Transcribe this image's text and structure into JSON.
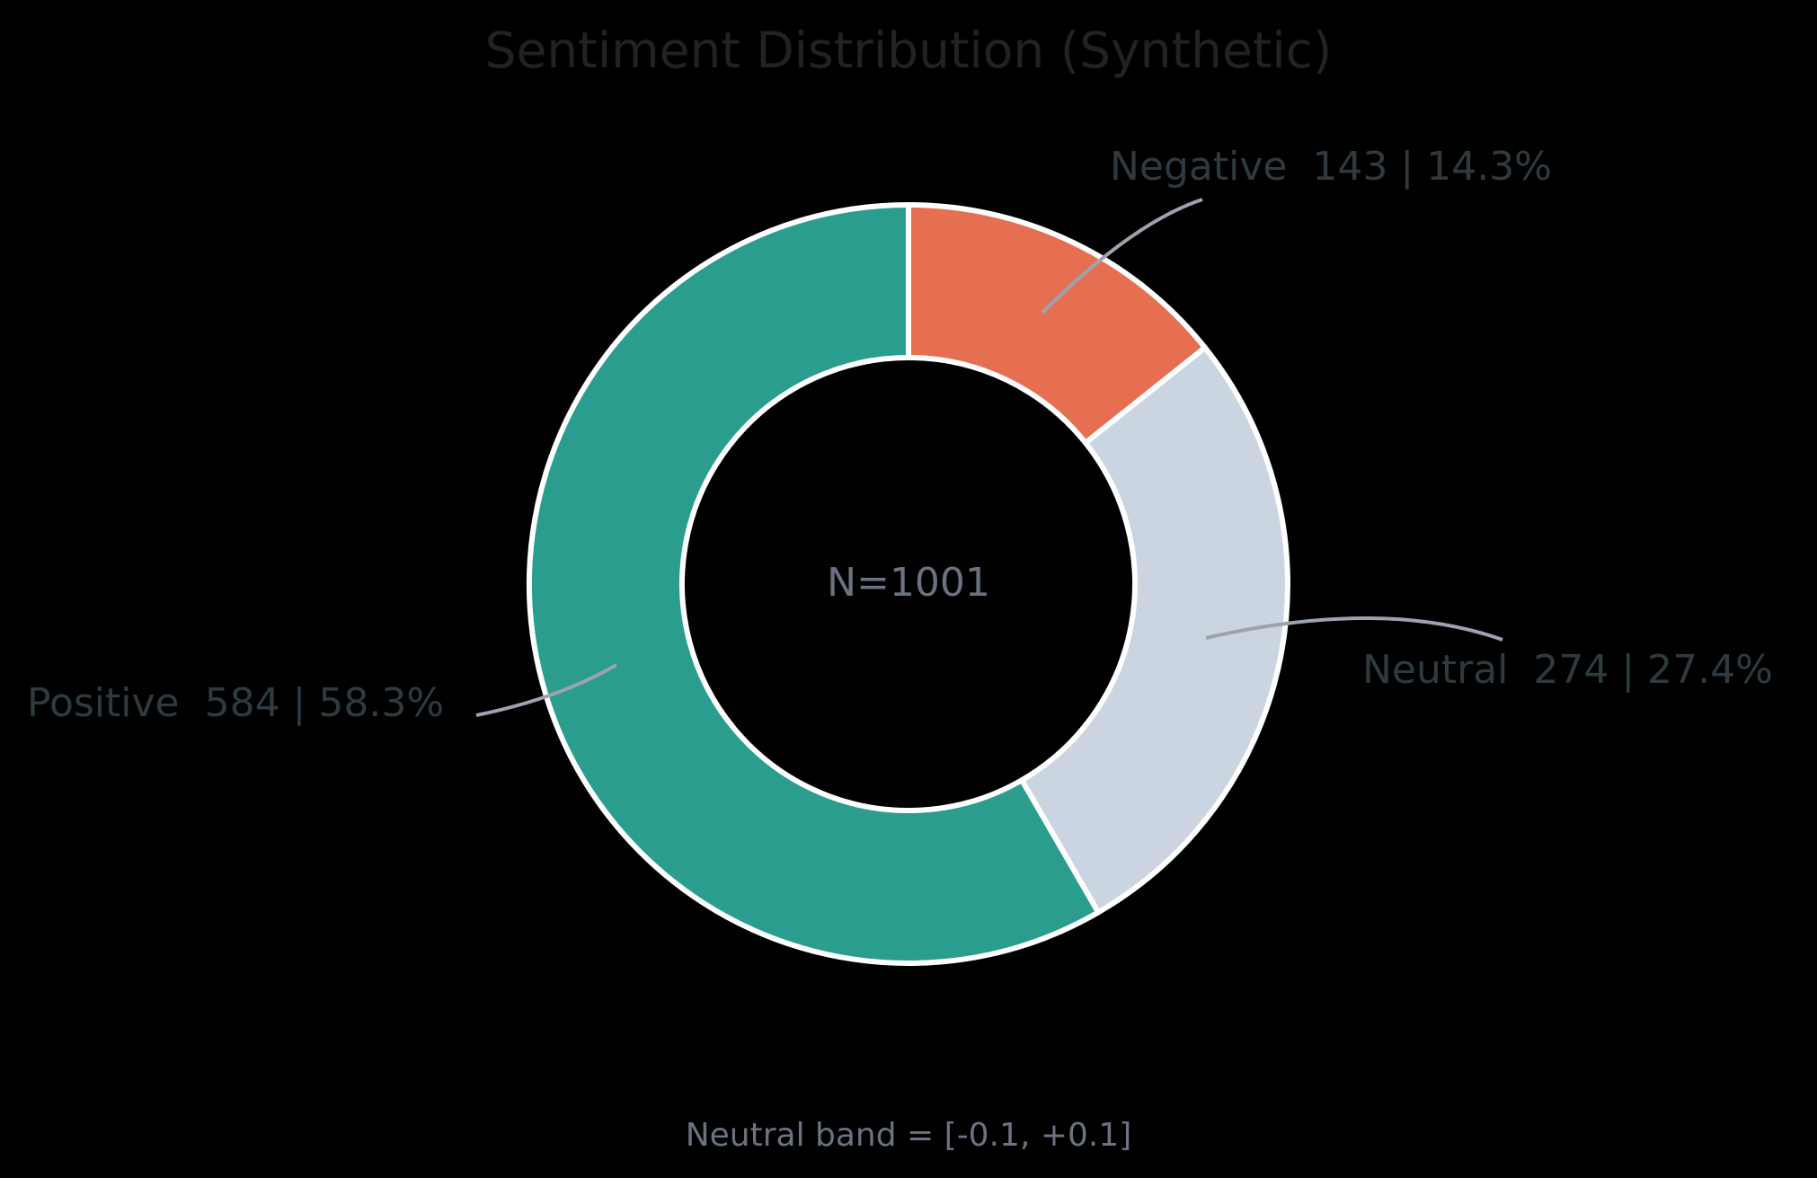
{
  "chart_data": {
    "type": "pie",
    "variant": "donut",
    "title": "Sentiment Distribution (Synthetic)",
    "center_label": "N=1001",
    "footnote": "Neutral band = [-0.1, +0.1]",
    "start": "top",
    "direction": "clockwise",
    "slices": [
      {
        "name": "Negative",
        "value": 143,
        "percent": 14.3,
        "label": "Negative  143 | 14.3%",
        "color": "#e76f51"
      },
      {
        "name": "Neutral",
        "value": 274,
        "percent": 27.4,
        "label": "Neutral  274 | 27.4%",
        "color": "#cbd5e1"
      },
      {
        "name": "Positive",
        "value": 584,
        "percent": 58.3,
        "label": "Positive  584 | 58.3%",
        "color": "#2a9d8f"
      }
    ],
    "slice_edge_color": "#ffffff",
    "leader_color": "#9ca3af"
  }
}
